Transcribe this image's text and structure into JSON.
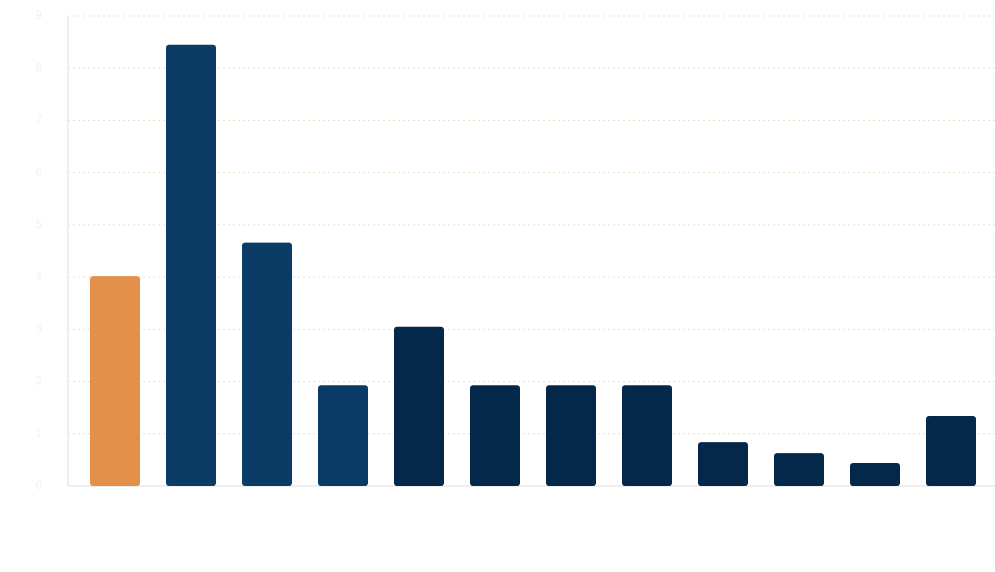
{
  "chart_data": {
    "type": "bar",
    "categories": [
      null,
      null,
      null,
      null,
      null,
      null,
      null,
      null,
      null,
      null,
      null,
      null
    ],
    "values": [
      4.02,
      8.45,
      4.66,
      1.93,
      3.05,
      1.93,
      1.93,
      1.93,
      0.84,
      0.63,
      0.44,
      1.34
    ],
    "colors": [
      "#e3914a",
      "#0b3c66",
      "#0b3c66",
      "#0a3a66",
      "#03284a",
      "#03284a",
      "#03284a",
      "#03284a",
      "#03284a",
      "#03284a",
      "#03284a",
      "#03284a"
    ],
    "ylim": [
      0,
      9
    ],
    "yticks": [
      0,
      1,
      2,
      3,
      4,
      5,
      6,
      7,
      8,
      9
    ],
    "grid": true
  }
}
